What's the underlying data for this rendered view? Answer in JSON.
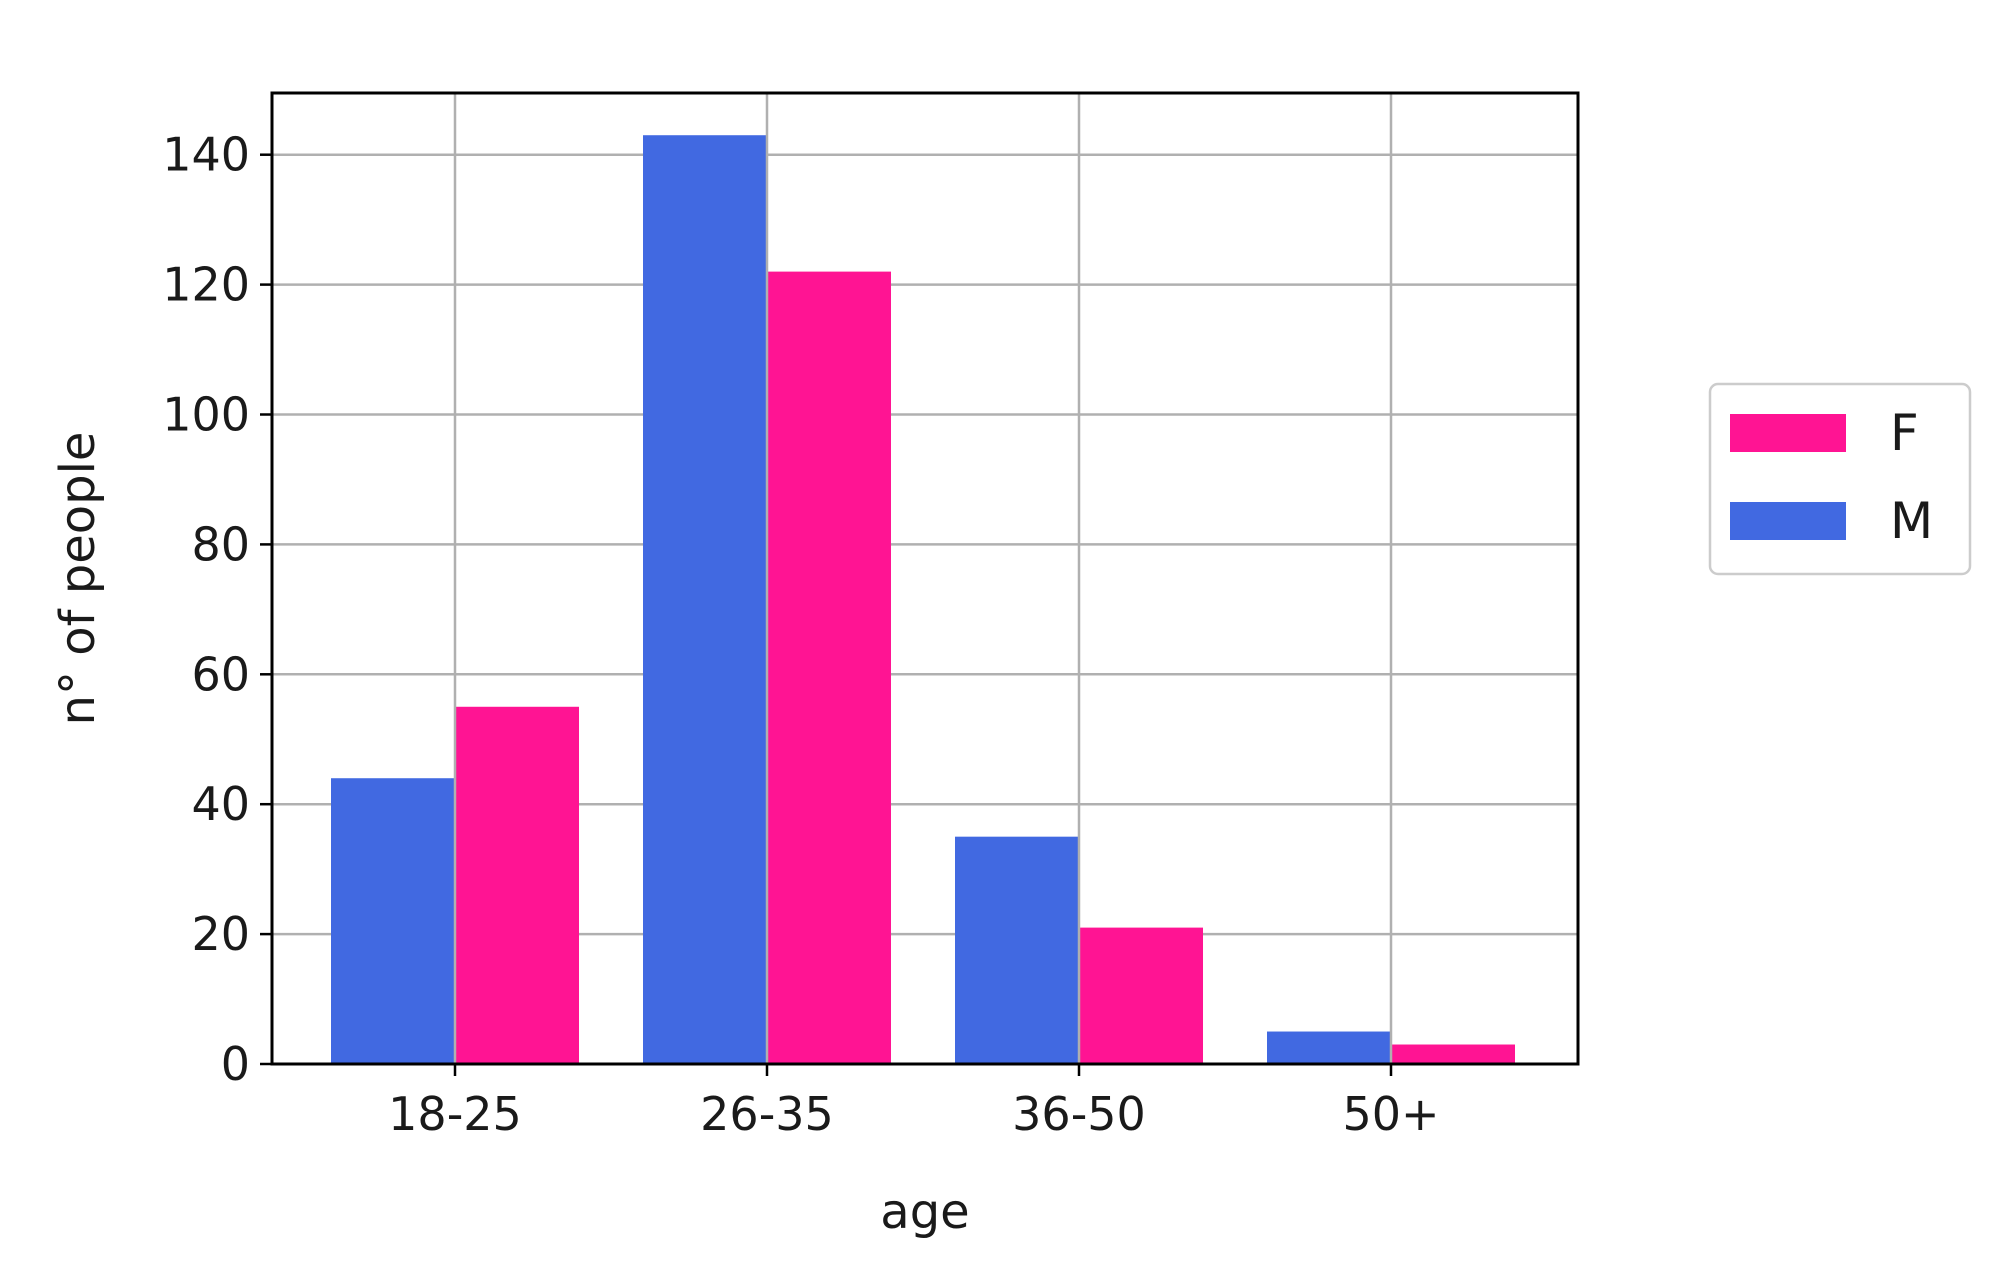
{
  "chart_data": {
    "type": "bar",
    "title": "",
    "xlabel": "age",
    "ylabel": "n° of people",
    "categories": [
      "18-25",
      "26-35",
      "36-50",
      "50+"
    ],
    "series": [
      {
        "name": "M",
        "color": "#4169e1",
        "values": [
          44,
          143,
          35,
          5
        ]
      },
      {
        "name": "F",
        "color": "#ff1493",
        "values": [
          55,
          122,
          21,
          3
        ]
      }
    ],
    "legend_order": [
      "F",
      "M"
    ],
    "legend_position": "center-right, outside plot",
    "ylim": [
      0,
      149.5
    ],
    "yticks": [
      0,
      20,
      40,
      60,
      80,
      100,
      120,
      140
    ],
    "grid": true
  }
}
